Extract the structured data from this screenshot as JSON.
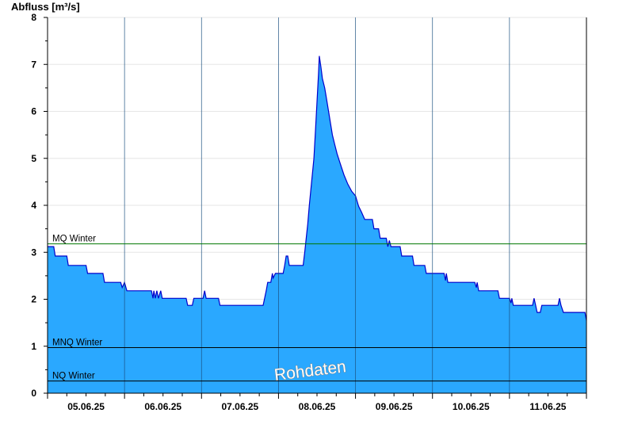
{
  "chart_data": {
    "type": "area",
    "ylabel": "Abfluss [m³/s]",
    "ylim": [
      0,
      8
    ],
    "yticks": [
      0,
      1,
      2,
      3,
      4,
      5,
      6,
      7,
      8
    ],
    "xlim": [
      0,
      7
    ],
    "day_labels": [
      "05.06.25",
      "06.06.25",
      "07.06.25",
      "08.06.25",
      "09.06.25",
      "10.06.25",
      "11.06.25"
    ],
    "grid": "horizontal",
    "fill_color": "#2aa8ff",
    "line_color": "#0000cc",
    "reference_lines": [
      {
        "label": "MQ Winter",
        "value": 3.18,
        "color": "#007700"
      },
      {
        "label": "MNQ Winter",
        "value": 0.97,
        "color": "#000000"
      },
      {
        "label": "NQ Winter",
        "value": 0.26,
        "color": "#000000"
      }
    ],
    "watermark": "Rohdaten",
    "series": [
      {
        "points": [
          [
            0.0,
            3.12
          ],
          [
            0.08,
            3.12
          ],
          [
            0.1,
            2.92
          ],
          [
            0.25,
            2.92
          ],
          [
            0.27,
            2.72
          ],
          [
            0.5,
            2.72
          ],
          [
            0.52,
            2.55
          ],
          [
            0.72,
            2.55
          ],
          [
            0.74,
            2.36
          ],
          [
            0.95,
            2.36
          ],
          [
            0.97,
            2.25
          ],
          [
            1.0,
            2.36
          ],
          [
            1.03,
            2.18
          ],
          [
            1.35,
            2.18
          ],
          [
            1.37,
            2.02
          ],
          [
            1.38,
            2.18
          ],
          [
            1.4,
            2.02
          ],
          [
            1.42,
            2.18
          ],
          [
            1.44,
            2.02
          ],
          [
            1.47,
            2.18
          ],
          [
            1.49,
            2.02
          ],
          [
            1.8,
            2.02
          ],
          [
            1.82,
            1.87
          ],
          [
            1.88,
            1.87
          ],
          [
            1.9,
            2.02
          ],
          [
            2.02,
            2.02
          ],
          [
            2.04,
            2.18
          ],
          [
            2.06,
            2.02
          ],
          [
            2.22,
            2.02
          ],
          [
            2.24,
            1.87
          ],
          [
            2.8,
            1.87
          ],
          [
            2.82,
            2.02
          ],
          [
            2.84,
            2.18
          ],
          [
            2.86,
            2.36
          ],
          [
            2.9,
            2.36
          ],
          [
            2.92,
            2.55
          ],
          [
            2.93,
            2.45
          ],
          [
            2.96,
            2.55
          ],
          [
            3.06,
            2.55
          ],
          [
            3.08,
            2.72
          ],
          [
            3.1,
            2.92
          ],
          [
            3.12,
            2.92
          ],
          [
            3.14,
            2.72
          ],
          [
            3.32,
            2.72
          ],
          [
            3.34,
            3.0
          ],
          [
            3.36,
            3.3
          ],
          [
            3.38,
            3.6
          ],
          [
            3.4,
            4.0
          ],
          [
            3.43,
            4.5
          ],
          [
            3.46,
            5.0
          ],
          [
            3.48,
            5.6
          ],
          [
            3.5,
            6.2
          ],
          [
            3.52,
            6.8
          ],
          [
            3.53,
            7.18
          ],
          [
            3.55,
            6.95
          ],
          [
            3.57,
            6.7
          ],
          [
            3.6,
            6.5
          ],
          [
            3.62,
            6.3
          ],
          [
            3.65,
            6.0
          ],
          [
            3.68,
            5.7
          ],
          [
            3.7,
            5.5
          ],
          [
            3.73,
            5.3
          ],
          [
            3.76,
            5.1
          ],
          [
            3.8,
            4.9
          ],
          [
            3.85,
            4.65
          ],
          [
            3.9,
            4.45
          ],
          [
            3.95,
            4.3
          ],
          [
            4.0,
            4.2
          ],
          [
            4.04,
            3.98
          ],
          [
            4.08,
            3.85
          ],
          [
            4.12,
            3.7
          ],
          [
            4.22,
            3.7
          ],
          [
            4.24,
            3.5
          ],
          [
            4.3,
            3.5
          ],
          [
            4.32,
            3.3
          ],
          [
            4.4,
            3.3
          ],
          [
            4.42,
            3.12
          ],
          [
            4.44,
            3.25
          ],
          [
            4.46,
            3.12
          ],
          [
            4.58,
            3.12
          ],
          [
            4.6,
            2.92
          ],
          [
            4.74,
            2.92
          ],
          [
            4.76,
            2.72
          ],
          [
            4.9,
            2.72
          ],
          [
            4.92,
            2.55
          ],
          [
            5.15,
            2.55
          ],
          [
            5.17,
            2.4
          ],
          [
            5.18,
            2.55
          ],
          [
            5.2,
            2.36
          ],
          [
            5.55,
            2.36
          ],
          [
            5.57,
            2.25
          ],
          [
            5.58,
            2.36
          ],
          [
            5.6,
            2.18
          ],
          [
            5.85,
            2.18
          ],
          [
            5.87,
            2.02
          ],
          [
            6.0,
            2.02
          ],
          [
            6.02,
            1.92
          ],
          [
            6.03,
            2.02
          ],
          [
            6.05,
            1.87
          ],
          [
            6.3,
            1.87
          ],
          [
            6.32,
            2.02
          ],
          [
            6.34,
            1.87
          ],
          [
            6.36,
            1.72
          ],
          [
            6.4,
            1.72
          ],
          [
            6.42,
            1.87
          ],
          [
            6.63,
            1.87
          ],
          [
            6.65,
            2.02
          ],
          [
            6.67,
            1.87
          ],
          [
            6.7,
            1.72
          ],
          [
            6.98,
            1.72
          ],
          [
            7.0,
            1.55
          ]
        ]
      }
    ]
  }
}
